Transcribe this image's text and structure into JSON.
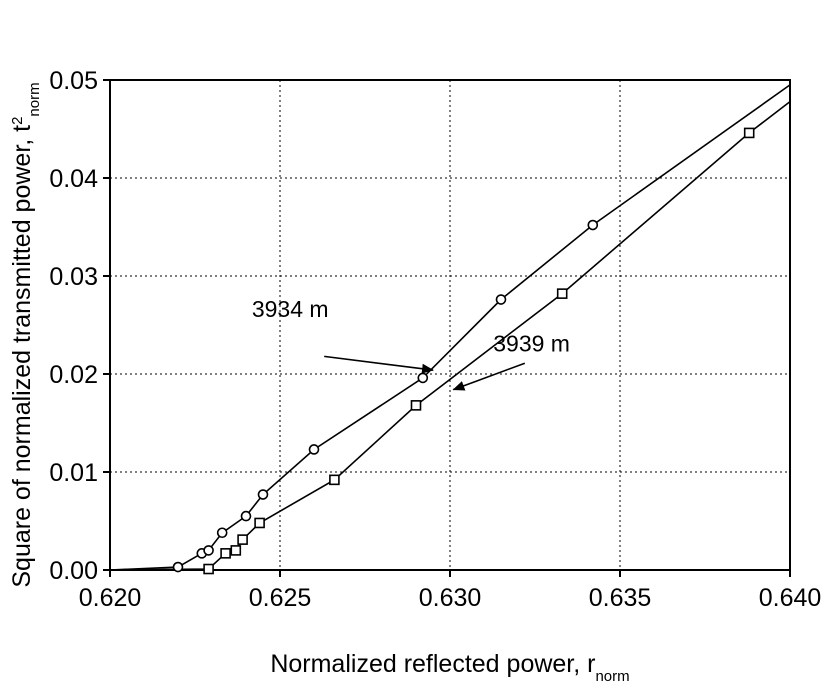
{
  "chart_data": {
    "type": "line",
    "xlabel": "Normalized reflected power, r",
    "xlabel_sub": "norm",
    "ylabel": "Square of normalized transmitted power, t",
    "ylabel_sup": "2",
    "ylabel_sub": "norm",
    "xlim": [
      0.62,
      0.64
    ],
    "ylim": [
      0.0,
      0.05
    ],
    "xticks": [
      "0.620",
      "0.625",
      "0.630",
      "0.635",
      "0.640"
    ],
    "yticks": [
      "0.00",
      "0.01",
      "0.02",
      "0.03",
      "0.04",
      "0.05"
    ],
    "grid": true,
    "series": [
      {
        "name": "3934 m",
        "marker": "circle",
        "x": [
          0.622,
          0.6227,
          0.6229,
          0.6233,
          0.624,
          0.6245,
          0.626,
          0.6292,
          0.6315,
          0.6342
        ],
        "y": [
          0.0003,
          0.0017,
          0.002,
          0.0038,
          0.0055,
          0.0077,
          0.0123,
          0.0196,
          0.0276,
          0.0352
        ],
        "line_x": [
          0.62,
          0.622,
          0.6227,
          0.6229,
          0.6233,
          0.624,
          0.6245,
          0.626,
          0.6292,
          0.6315,
          0.6342,
          0.64
        ],
        "line_y": [
          0.0,
          0.0003,
          0.0017,
          0.002,
          0.0038,
          0.0055,
          0.0077,
          0.0123,
          0.0196,
          0.0276,
          0.0352,
          0.0495
        ]
      },
      {
        "name": "3939 m",
        "marker": "square",
        "x": [
          0.6229,
          0.6234,
          0.6237,
          0.6239,
          0.6244,
          0.6266,
          0.629,
          0.6333,
          0.6388
        ],
        "y": [
          0.0001,
          0.0017,
          0.002,
          0.0031,
          0.0048,
          0.0092,
          0.0168,
          0.0282,
          0.0446
        ],
        "line_x": [
          0.62,
          0.6229,
          0.6234,
          0.6237,
          0.6239,
          0.6244,
          0.6266,
          0.629,
          0.6333,
          0.6388,
          0.64
        ],
        "line_y": [
          0.0,
          0.0001,
          0.0017,
          0.002,
          0.0031,
          0.0048,
          0.0092,
          0.0168,
          0.0282,
          0.0446,
          0.0478
        ]
      }
    ],
    "annotations": [
      {
        "text": "3934 m",
        "text_x": 0.6253,
        "text_y": 0.0258,
        "arrow_from": [
          0.6263,
          0.0218
        ],
        "arrow_to": [
          0.6295,
          0.0204
        ]
      },
      {
        "text": "3939 m",
        "text_x": 0.6324,
        "text_y": 0.0223,
        "arrow_from": [
          0.6322,
          0.0211
        ],
        "arrow_to": [
          0.6301,
          0.0184
        ]
      }
    ]
  }
}
